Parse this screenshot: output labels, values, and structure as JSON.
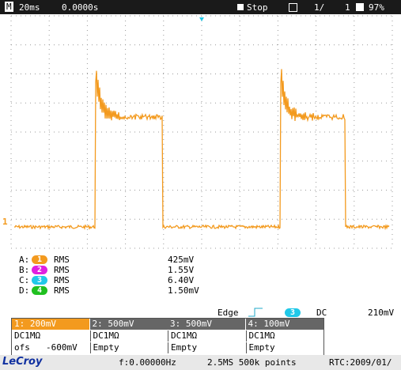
{
  "top_bar": {
    "mode": "M",
    "timebase": "20ms",
    "delay": "0.0000s",
    "run_state": "Stop",
    "acquisition": "1/",
    "acquisition_count": "1",
    "battery": "97%"
  },
  "trace_marker": "1",
  "measurements": [
    {
      "slot": "A:",
      "channel": "1",
      "type": "RMS",
      "value": "425mV"
    },
    {
      "slot": "B:",
      "channel": "2",
      "type": "RMS",
      "value": "1.55V"
    },
    {
      "slot": "C:",
      "channel": "3",
      "type": "RMS",
      "value": "6.40V"
    },
    {
      "slot": "D:",
      "channel": "4",
      "type": "RMS",
      "value": "1.50mV"
    }
  ],
  "trigger": {
    "type": "Edge",
    "source": "3",
    "coupling": "DC",
    "level": "210mV"
  },
  "channels": [
    {
      "label": "1: 200mV",
      "coupling": "DC1MΩ",
      "offset_label": "ofs",
      "offset": "-600mV"
    },
    {
      "label": "2: 500mV",
      "coupling": "DC1MΩ",
      "status": "Empty"
    },
    {
      "label": "3: 500mV",
      "coupling": "DC1MΩ",
      "status": "Empty"
    },
    {
      "label": "4: 100mV",
      "coupling": "DC1MΩ",
      "status": "Empty"
    }
  ],
  "footer": {
    "brand": "LeCroy",
    "frequency": "f:0.00000Hz",
    "sampling": "2.5MS 500k points",
    "rtc": "RTC:2009/01/"
  }
}
